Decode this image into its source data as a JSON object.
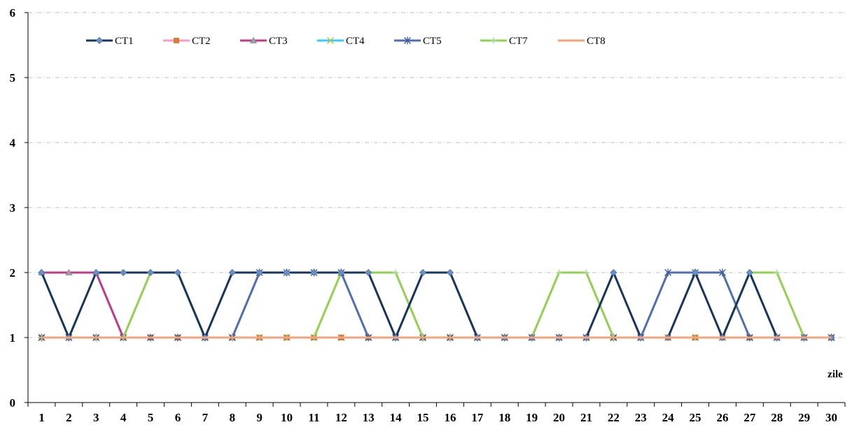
{
  "chart_data": {
    "type": "line",
    "title": "",
    "xlabel": "zile",
    "ylabel": "",
    "x": [
      1,
      2,
      3,
      4,
      5,
      6,
      7,
      8,
      9,
      10,
      11,
      12,
      13,
      14,
      15,
      16,
      17,
      18,
      19,
      20,
      21,
      22,
      23,
      24,
      25,
      26,
      27,
      28,
      29,
      30
    ],
    "ylim": [
      0,
      6
    ],
    "yticks": [
      0,
      1,
      2,
      3,
      4,
      5,
      6
    ],
    "grid": "horizontal-dashed",
    "legend_position": "top-left",
    "series": [
      {
        "name": "CT1",
        "color": "#17365D",
        "marker": "diamond",
        "values": [
          2,
          1,
          2,
          2,
          2,
          2,
          1,
          2,
          2,
          2,
          2,
          2,
          2,
          1,
          2,
          2,
          1,
          1,
          1,
          1,
          1,
          2,
          1,
          1,
          2,
          1,
          2,
          1,
          1,
          1
        ]
      },
      {
        "name": "CT2",
        "color": "#FF99CC",
        "marker": "square",
        "values": [
          1,
          1,
          1,
          1,
          1,
          1,
          1,
          1,
          1,
          1,
          1,
          1,
          1,
          1,
          1,
          1,
          1,
          1,
          1,
          1,
          1,
          1,
          1,
          1,
          1,
          1,
          1,
          1,
          1,
          1
        ]
      },
      {
        "name": "CT3",
        "color": "#C0398A",
        "marker": "triangle",
        "values": [
          2,
          2,
          2,
          1,
          1,
          1,
          1,
          1,
          1,
          1,
          1,
          1,
          1,
          1,
          1,
          1,
          1,
          1,
          1,
          1,
          1,
          1,
          1,
          1,
          1,
          1,
          1,
          1,
          1,
          1
        ]
      },
      {
        "name": "CT4",
        "color": "#33CCFF",
        "marker": "x",
        "values": [
          1,
          1,
          1,
          1,
          1,
          1,
          1,
          1,
          1,
          1,
          1,
          1,
          1,
          1,
          1,
          1,
          1,
          1,
          1,
          1,
          1,
          1,
          1,
          1,
          1,
          1,
          1,
          1,
          1,
          1
        ]
      },
      {
        "name": "CT5",
        "color": "#4F6FAF",
        "marker": "star",
        "values": [
          1,
          1,
          1,
          1,
          1,
          1,
          1,
          1,
          2,
          2,
          2,
          2,
          1,
          1,
          1,
          1,
          1,
          1,
          1,
          1,
          1,
          1,
          1,
          2,
          2,
          2,
          1,
          1,
          1,
          1
        ]
      },
      {
        "name": "CT7",
        "color": "#92D050",
        "marker": "plus",
        "values": [
          1,
          1,
          1,
          1,
          2,
          2,
          1,
          1,
          1,
          1,
          1,
          2,
          2,
          2,
          1,
          1,
          1,
          1,
          1,
          2,
          2,
          1,
          1,
          1,
          1,
          1,
          2,
          2,
          1,
          1
        ]
      },
      {
        "name": "CT8",
        "color": "#F4A27A",
        "marker": "none",
        "values": [
          1,
          1,
          1,
          1,
          1,
          1,
          1,
          1,
          1,
          1,
          1,
          1,
          1,
          1,
          1,
          1,
          1,
          1,
          1,
          1,
          1,
          1,
          1,
          1,
          1,
          1,
          1,
          1,
          1,
          1
        ]
      }
    ]
  }
}
